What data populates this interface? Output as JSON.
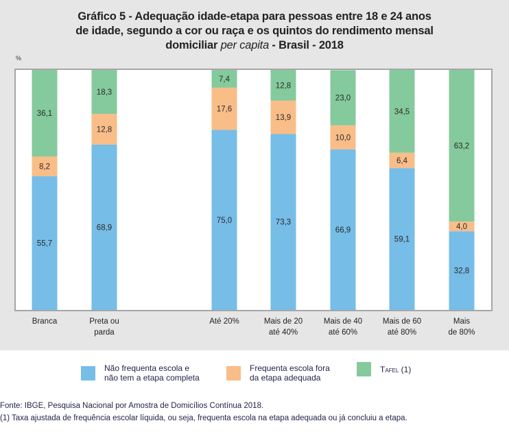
{
  "title": {
    "line1": "Gráfico 5 - Adequação idade-etapa para pessoas entre 18 e 24 anos",
    "line2": "de idade, segundo a cor ou raça e os quintos do rendimento mensal",
    "line3_pre": "domiciliar ",
    "line3_italic": "per capita",
    "line3_post": " - Brasil - 2018"
  },
  "unit_label": "%",
  "chart_data": {
    "type": "bar",
    "stacked": true,
    "title": "Gráfico 5 - Adequação idade-etapa para pessoas entre 18 e 24 anos de idade, segundo a cor ou raça e os quintos do rendimento mensal domiciliar per capita - Brasil - 2018",
    "ylabel": "%",
    "ylim": [
      0,
      100
    ],
    "grid": false,
    "legend_position": "bottom",
    "categories": [
      "Branca",
      "Preta ou parda",
      "Até 20%",
      "Mais de 20 até 40%",
      "Mais de 40 até 60%",
      "Mais de 60 até 80%",
      "Mais de 80%"
    ],
    "category_labels": [
      [
        "Branca"
      ],
      [
        "Preta ou",
        "parda"
      ],
      [
        "Até 20%"
      ],
      [
        "Mais de 20",
        "até 40%"
      ],
      [
        "Mais de 40",
        "até 60%"
      ],
      [
        "Mais de 60",
        "até 80%"
      ],
      [
        "Mais",
        "de 80%"
      ]
    ],
    "series": [
      {
        "name": "Não frequenta escola e não tem a etapa completa",
        "color": "#76bde8",
        "values": [
          55.7,
          68.9,
          75.0,
          73.3,
          66.9,
          59.1,
          32.8
        ],
        "labels": [
          "55,7",
          "68,9",
          "75,0",
          "73,3",
          "66,9",
          "59,1",
          "32,8"
        ]
      },
      {
        "name": "Frequenta escola fora da etapa adequada",
        "color": "#f9bd88",
        "values": [
          8.2,
          12.8,
          17.6,
          13.9,
          10.0,
          6.4,
          4.0
        ],
        "labels": [
          "8,2",
          "12,8",
          "17,6",
          "13,9",
          "10,0",
          "6,4",
          "4,0"
        ]
      },
      {
        "name": "Tafel (1)",
        "color": "#84ca9c",
        "values": [
          36.1,
          18.3,
          7.4,
          12.8,
          23.0,
          34.5,
          63.2
        ],
        "labels": [
          "36,1",
          "18,3",
          "7,4",
          "12,8",
          "23,0",
          "34,5",
          "63,2"
        ]
      }
    ]
  },
  "legend": [
    {
      "line1": "Não frequenta escola e",
      "line2": "não tem a etapa completa",
      "color": "#76bde8"
    },
    {
      "line1": "Frequenta escola fora",
      "line2": "da etapa adequada",
      "color": "#f9bd88"
    },
    {
      "line1": "Tafel (1)",
      "line2": "",
      "color": "#84ca9c"
    }
  ],
  "footer": {
    "source": "Fonte: IBGE, Pesquisa Nacional por Amostra de Domicílios Contínua 2018.",
    "note": "(1) Taxa ajustada de frequência escolar líquida, ou seja, frequenta escola na etapa adequada ou já concluiu a etapa."
  }
}
